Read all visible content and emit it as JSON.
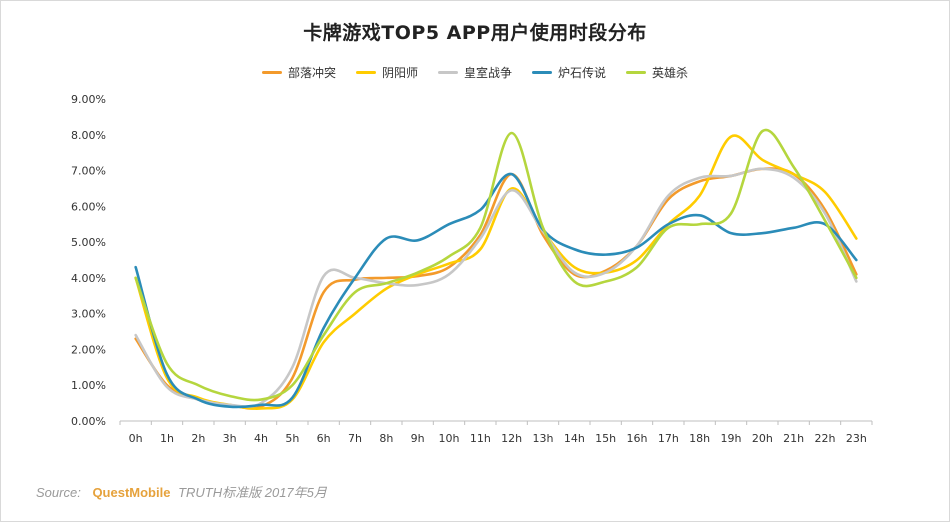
{
  "chart_data": {
    "type": "line",
    "title": "卡牌游戏TOP5 APP用户使用时段分布",
    "xlabel": "",
    "ylabel": "",
    "categories": [
      "0h",
      "1h",
      "2h",
      "3h",
      "4h",
      "5h",
      "6h",
      "7h",
      "8h",
      "9h",
      "10h",
      "11h",
      "12h",
      "13h",
      "14h",
      "15h",
      "16h",
      "17h",
      "18h",
      "19h",
      "20h",
      "21h",
      "22h",
      "23h"
    ],
    "y_ticks": [
      "0.00%",
      "1.00%",
      "2.00%",
      "3.00%",
      "4.00%",
      "5.00%",
      "6.00%",
      "7.00%",
      "8.00%",
      "9.00%"
    ],
    "ylim": [
      0,
      9
    ],
    "grid": false,
    "legend_position": "top",
    "series": [
      {
        "name": "部落冲突",
        "color": "#f39a2b",
        "values": [
          2.3,
          1.0,
          0.6,
          0.45,
          0.4,
          1.2,
          3.6,
          3.95,
          4.0,
          4.05,
          4.3,
          5.2,
          6.9,
          5.2,
          4.1,
          4.2,
          4.9,
          6.2,
          6.7,
          6.85,
          7.05,
          6.9,
          5.9,
          4.1
        ]
      },
      {
        "name": "阴阳师",
        "color": "#ffcc00",
        "values": [
          4.0,
          1.2,
          0.65,
          0.45,
          0.35,
          0.6,
          2.2,
          3.0,
          3.7,
          4.1,
          4.4,
          4.8,
          6.5,
          5.3,
          4.3,
          4.15,
          4.5,
          5.5,
          6.3,
          7.95,
          7.3,
          6.9,
          6.4,
          5.1
        ]
      },
      {
        "name": "皇室战争",
        "color": "#c7c7c7",
        "values": [
          2.4,
          0.95,
          0.6,
          0.45,
          0.5,
          1.5,
          4.05,
          4.0,
          3.85,
          3.8,
          4.1,
          5.1,
          6.45,
          5.3,
          4.15,
          4.15,
          4.9,
          6.3,
          6.8,
          6.85,
          7.05,
          6.8,
          5.8,
          3.9
        ]
      },
      {
        "name": "炉石传说",
        "color": "#2b8cb8",
        "values": [
          4.3,
          1.3,
          0.6,
          0.4,
          0.45,
          0.65,
          2.6,
          4.0,
          5.1,
          5.05,
          5.5,
          5.9,
          6.9,
          5.35,
          4.8,
          4.65,
          4.85,
          5.5,
          5.75,
          5.25,
          5.25,
          5.4,
          5.5,
          4.5
        ]
      },
      {
        "name": "英雄杀",
        "color": "#b5d63e",
        "values": [
          4.0,
          1.6,
          1.0,
          0.7,
          0.6,
          1.0,
          2.4,
          3.6,
          3.85,
          4.15,
          4.6,
          5.4,
          8.05,
          5.4,
          3.9,
          3.9,
          4.3,
          5.4,
          5.5,
          5.8,
          8.1,
          7.1,
          5.6,
          4.0
        ]
      }
    ]
  },
  "source": {
    "prefix": "Source:",
    "brand": "QuestMobile",
    "suffix": "TRUTH标准版 2017年5月"
  }
}
